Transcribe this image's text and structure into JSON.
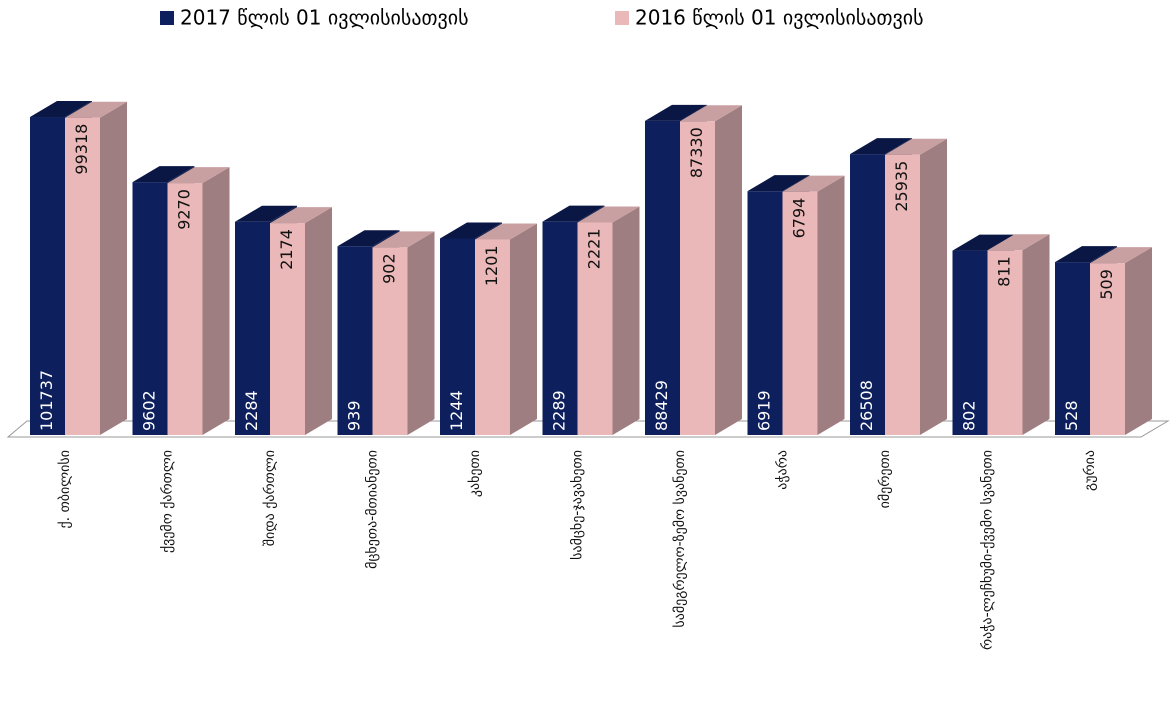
{
  "chart_data": {
    "type": "bar3d",
    "categories": [
      "ქ. თბილისი",
      "ქვემო ქართლი",
      "შიდა ქართლი",
      "მცხეთა-მთიანეთი",
      "კახეთი",
      "სამცხე-ჯავახეთი",
      "სამეგრელო-ზემო სვანეთი",
      "აჭარა",
      "იმერეთი",
      "რაჭა-ლეჩხუმი-ქვემო სვანეთი",
      "გურია"
    ],
    "series": [
      {
        "name": "2017 წლის 01 ივლისისათვის",
        "color": "#0d1f5c",
        "values": [
          101737,
          9602,
          2284,
          939,
          1244,
          2289,
          88429,
          6919,
          26508,
          802,
          528
        ]
      },
      {
        "name": "2016 წლის 01 ივლისისათვის",
        "color": "#eab8b8",
        "values": [
          99318,
          9270,
          2174,
          902,
          1201,
          2221,
          87330,
          6794,
          25935,
          811,
          509
        ]
      }
    ],
    "ylim": [
      1,
      1000000
    ],
    "log_scale": true,
    "legend": "top"
  }
}
